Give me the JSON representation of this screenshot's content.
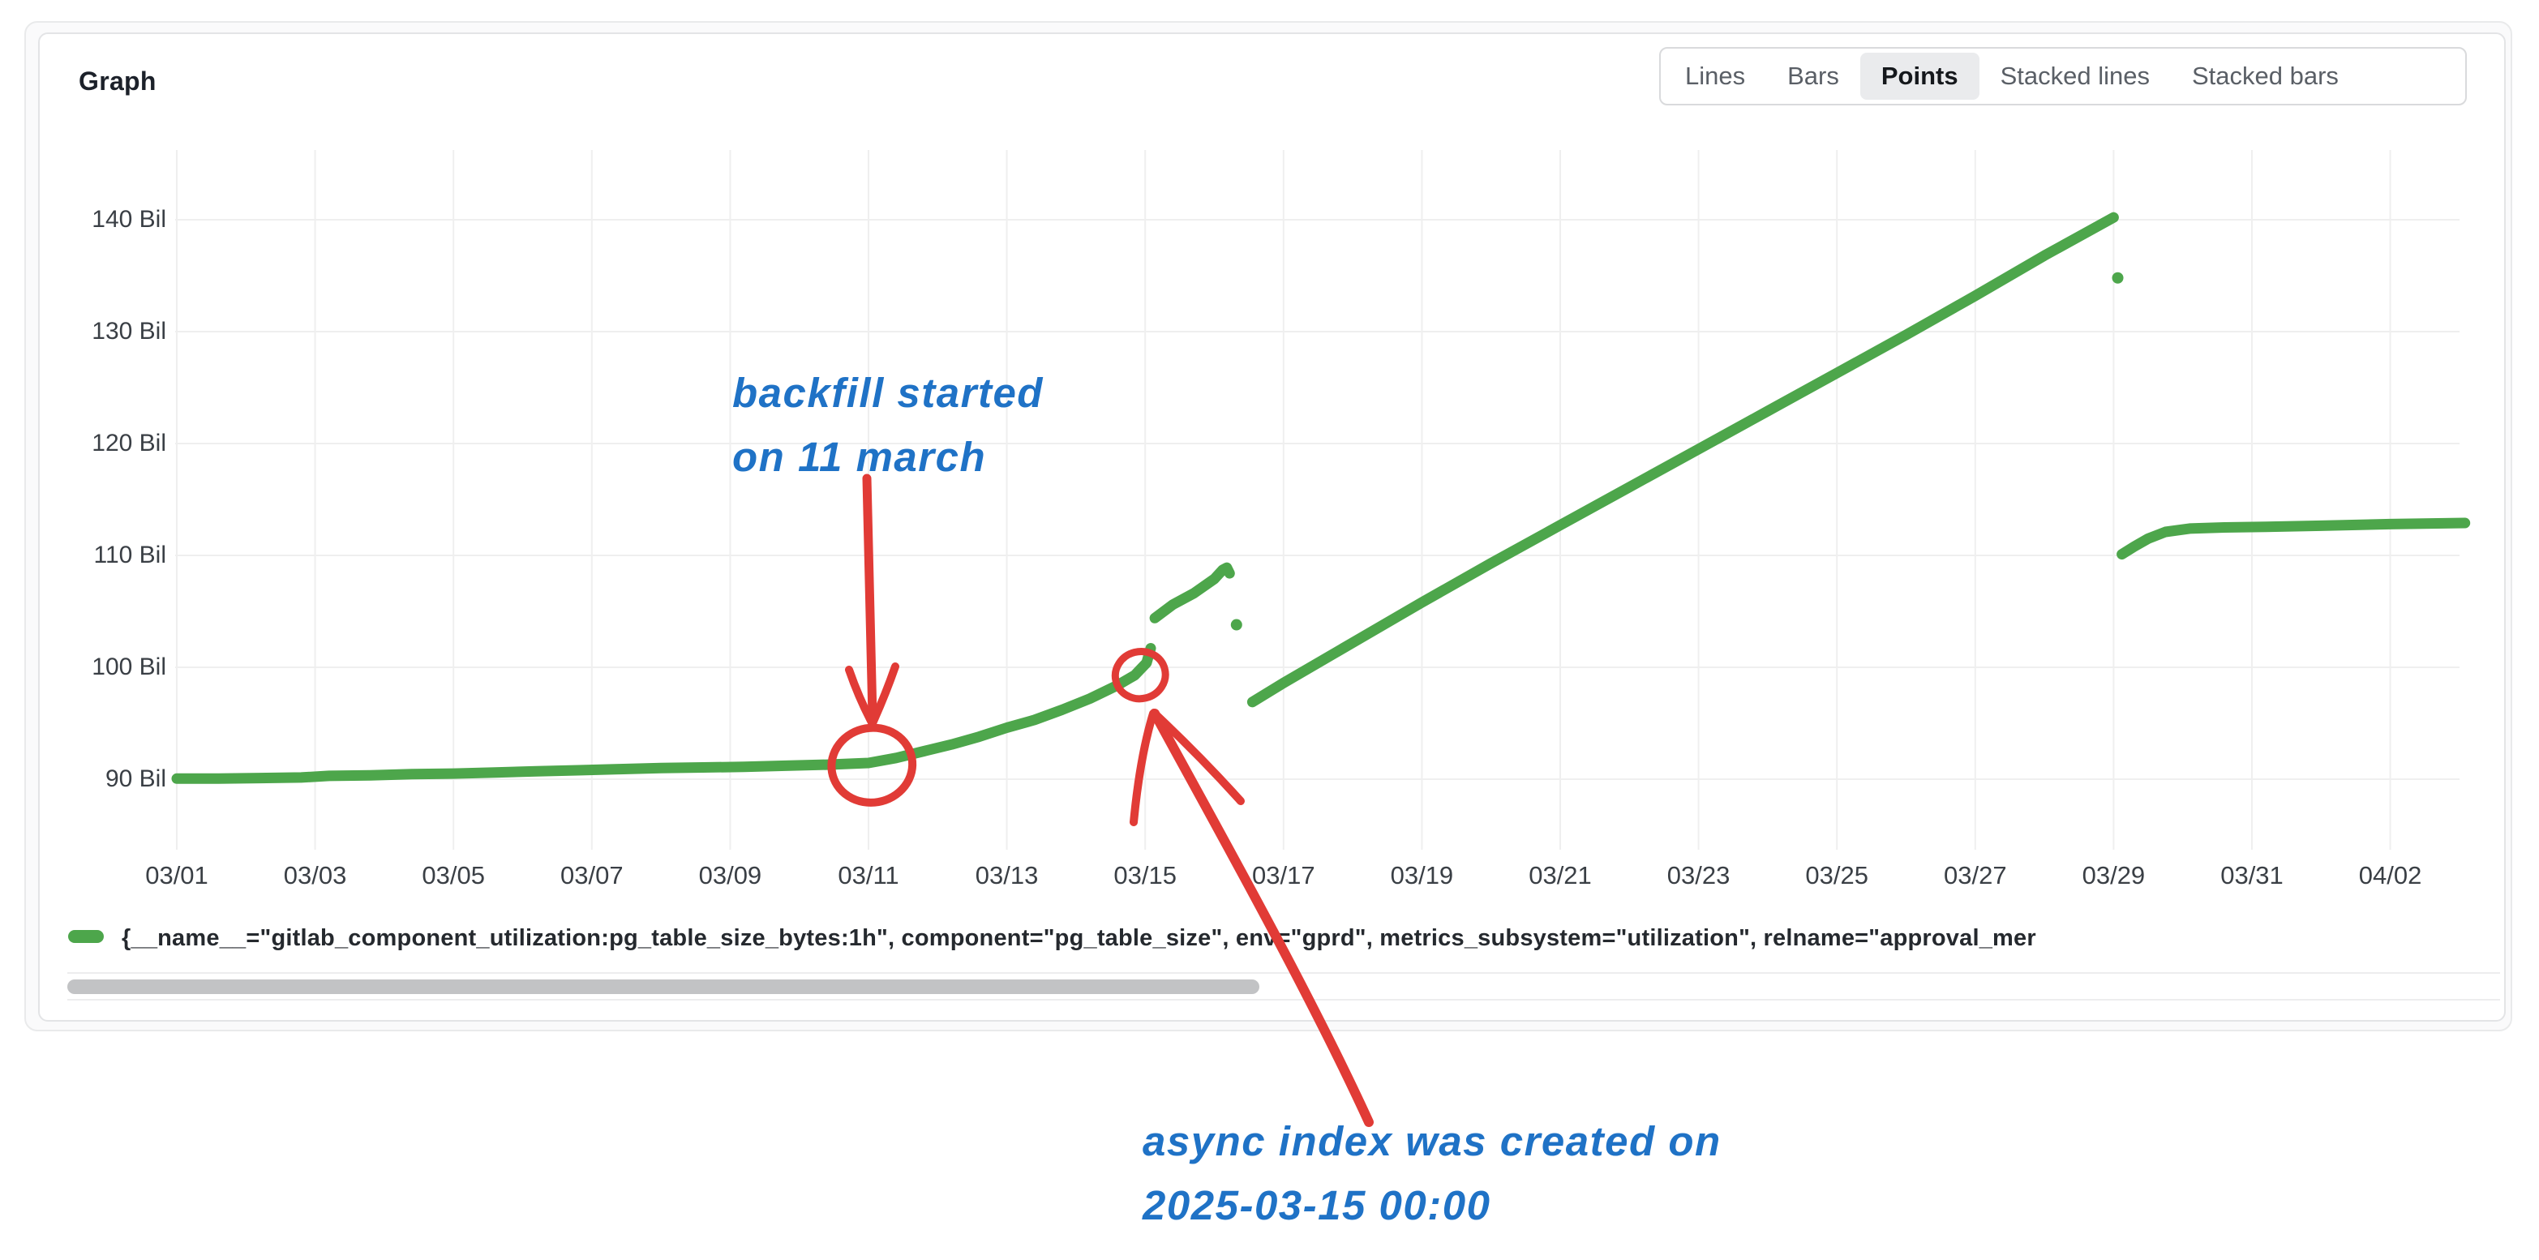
{
  "panel": {
    "title": "Graph"
  },
  "view_switcher": {
    "options": [
      {
        "label": "Lines",
        "selected": false
      },
      {
        "label": "Bars",
        "selected": false
      },
      {
        "label": "Points",
        "selected": true
      },
      {
        "label": "Stacked lines",
        "selected": false
      },
      {
        "label": "Stacked bars",
        "selected": false
      }
    ]
  },
  "legend": {
    "series_label": "{__name__=\"gitlab_component_utilization:pg_table_size_bytes:1h\", component=\"pg_table_size\", env=\"gprd\", metrics_subsystem=\"utilization\", relname=\"approval_mer"
  },
  "handwritten_annotations": {
    "backfill_note": "backfill started\non 11 march",
    "async_index_note": "async index was created on\n2025-03-15 00:00",
    "ink_color": "#1f72c6",
    "marker_color": "#e13b36"
  },
  "colors": {
    "series_green": "#4da64b",
    "grid_line": "#efefef",
    "axis_text": "#3a3f45",
    "scroll_thumb": "#c2c3c5"
  },
  "chart_data": {
    "type": "scatter",
    "render_style": "points",
    "title": "Graph",
    "x_axis": {
      "unit": "date (2025)",
      "tick_step_days": 2,
      "tick_labels": [
        "03/01",
        "03/03",
        "03/05",
        "03/07",
        "03/09",
        "03/11",
        "03/13",
        "03/15",
        "03/17",
        "03/19",
        "03/21",
        "03/23",
        "03/25",
        "03/27",
        "03/29",
        "03/31",
        "04/02"
      ],
      "day_scale_note": "series x values are March day numbers; 32=04/01, 33=04/02, 34=04/03"
    },
    "y_axis": {
      "unit": "bytes (billions)",
      "tick_values": [
        90,
        100,
        110,
        120,
        130,
        140
      ],
      "tick_labels": [
        "90 Bil",
        "100 Bil",
        "110 Bil",
        "120 Bil",
        "130 Bil",
        "140 Bil"
      ],
      "range": [
        84,
        146
      ],
      "grid": true
    },
    "series": [
      {
        "name": "gitlab_component_utilization:pg_table_size_bytes:1h (approval_mer…)",
        "color": "#4da64b",
        "segments": [
          [
            [
              1,
              90.05
            ],
            [
              1.6,
              90.05
            ],
            [
              2.2,
              90.1
            ],
            [
              2.8,
              90.15
            ],
            [
              3.2,
              90.3
            ],
            [
              3.8,
              90.35
            ],
            [
              4.4,
              90.45
            ],
            [
              5,
              90.5
            ],
            [
              5.6,
              90.6
            ],
            [
              6.2,
              90.7
            ],
            [
              6.8,
              90.8
            ],
            [
              7.4,
              90.9
            ],
            [
              8,
              91.0
            ],
            [
              8.6,
              91.05
            ],
            [
              9.2,
              91.1
            ],
            [
              9.8,
              91.2
            ],
            [
              10.4,
              91.3
            ],
            [
              11,
              91.45
            ],
            [
              11.4,
              91.9
            ],
            [
              11.8,
              92.5
            ],
            [
              12.2,
              93.1
            ],
            [
              12.6,
              93.8
            ],
            [
              13,
              94.6
            ],
            [
              13.4,
              95.3
            ],
            [
              13.8,
              96.2
            ],
            [
              14.2,
              97.2
            ],
            [
              14.6,
              98.4
            ],
            [
              14.85,
              99.3
            ],
            [
              15.02,
              100.4
            ],
            [
              15.08,
              101.7
            ]
          ],
          [
            [
              15.14,
              104.4
            ],
            [
              15.4,
              105.6
            ],
            [
              15.7,
              106.6
            ],
            [
              16.0,
              107.9
            ],
            [
              16.12,
              108.7
            ],
            [
              16.18,
              108.9
            ],
            [
              16.22,
              108.4
            ]
          ],
          [
            [
              16.55,
              96.9
            ],
            [
              17,
              98.6
            ],
            [
              18,
              102.2
            ],
            [
              19,
              105.8
            ],
            [
              20,
              109.3
            ],
            [
              21,
              112.7
            ],
            [
              22,
              116.1
            ],
            [
              23,
              119.5
            ],
            [
              24,
              122.9
            ],
            [
              25,
              126.3
            ],
            [
              26,
              129.7
            ],
            [
              27,
              133.2
            ],
            [
              28,
              136.8
            ],
            [
              28.5,
              138.5
            ],
            [
              29.0,
              140.2
            ]
          ],
          [
            [
              29.12,
              110.1
            ],
            [
              29.3,
              110.8
            ],
            [
              29.5,
              111.5
            ],
            [
              29.75,
              112.1
            ],
            [
              30.1,
              112.4
            ],
            [
              30.6,
              112.5
            ],
            [
              31.2,
              112.55
            ],
            [
              32,
              112.65
            ],
            [
              33,
              112.8
            ],
            [
              34.08,
              112.9
            ]
          ]
        ],
        "isolated_points": [
          [
            16.32,
            103.8
          ],
          [
            29.06,
            134.8
          ]
        ]
      }
    ],
    "event_marks": [
      {
        "shape": "circle",
        "x_day": 11.05,
        "y_value": 91.25,
        "rx": 50,
        "ry": 46,
        "rot": -10,
        "note_ref": "backfill_note"
      },
      {
        "shape": "circle",
        "x_day": 14.93,
        "y_value": 99.3,
        "rx": 31,
        "ry": 29,
        "rot": -14,
        "note_ref": "async_index_note"
      }
    ],
    "legend_position": "bottom"
  }
}
